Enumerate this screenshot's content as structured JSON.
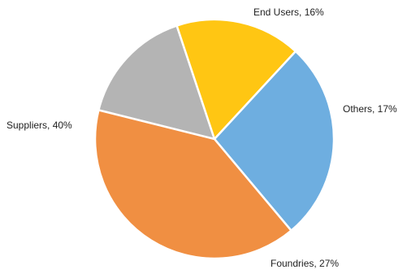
{
  "chart_data": {
    "type": "pie",
    "slices": [
      {
        "label": "End Users",
        "value": 16,
        "display": "End Users, 16%",
        "color": "#B4B4B4"
      },
      {
        "label": "Others",
        "value": 17,
        "display": "Others, 17%",
        "color": "#FFC613"
      },
      {
        "label": "Foundries",
        "value": 27,
        "display": "Foundries, 27%",
        "color": "#6EAEE0"
      },
      {
        "label": "Suppliers",
        "value": 40,
        "display": "Suppliers, 40%",
        "color": "#F08F42"
      }
    ]
  }
}
